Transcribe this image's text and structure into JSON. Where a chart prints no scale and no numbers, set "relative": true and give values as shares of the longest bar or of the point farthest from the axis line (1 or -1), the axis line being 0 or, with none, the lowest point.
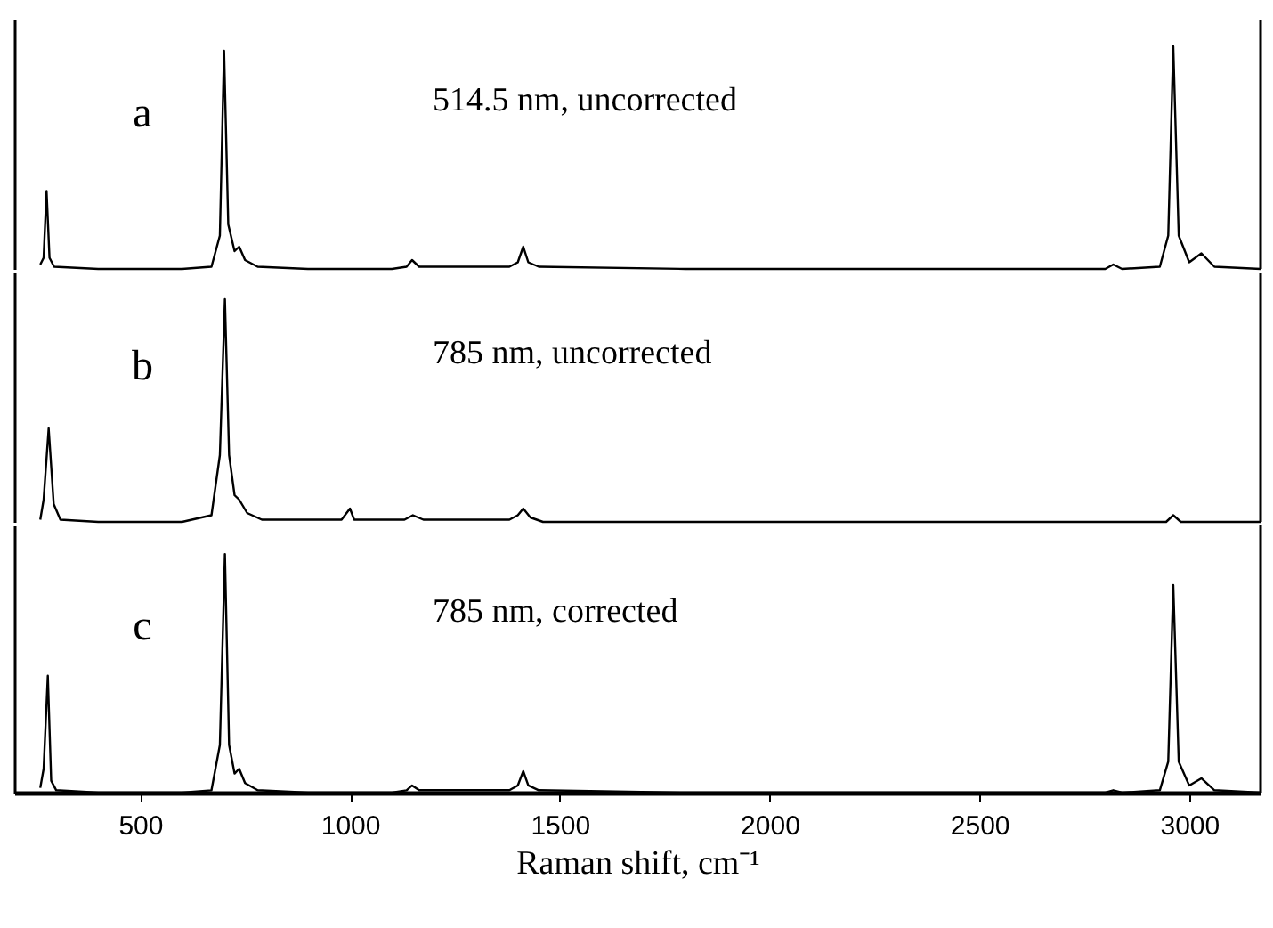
{
  "chart_data": [
    {
      "type": "line",
      "relative": true,
      "annotations": [
        "a"
      ],
      "xlim": [
        200,
        3170
      ],
      "xticks": [
        500,
        1000,
        1500,
        2000,
        2500,
        3000
      ],
      "tick_labels": false,
      "series": [
        {
          "name": "514.5 nm, uncorrected",
          "color": "#000000",
          "x": [
            262,
            270,
            277,
            284,
            295,
            400,
            600,
            670,
            690,
            700,
            710,
            725,
            736,
            750,
            780,
            900,
            1100,
            1135,
            1148,
            1165,
            1380,
            1400,
            1413,
            1425,
            1450,
            1800,
            2500,
            2800,
            2819,
            2840,
            2930,
            2950,
            2962,
            2975,
            3000,
            3029,
            3060,
            3170
          ],
          "values": [
            0.02,
            0.05,
            0.35,
            0.05,
            0.01,
            0,
            0,
            0.01,
            0.15,
            0.98,
            0.2,
            0.08,
            0.1,
            0.04,
            0.01,
            0,
            0,
            0.01,
            0.04,
            0.01,
            0.01,
            0.03,
            0.1,
            0.03,
            0.01,
            0,
            0,
            0,
            0.02,
            0,
            0.01,
            0.15,
            1.0,
            0.15,
            0.03,
            0.07,
            0.01,
            0
          ]
        }
      ]
    },
    {
      "type": "line",
      "relative": true,
      "annotations": [
        "b"
      ],
      "xlim": [
        200,
        3170
      ],
      "xticks": [
        500,
        1000,
        1500,
        2000,
        2500,
        3000
      ],
      "tick_labels": false,
      "series": [
        {
          "name": "785 nm, uncorrected",
          "color": "#000000",
          "x": [
            262,
            270,
            282,
            294,
            310,
            400,
            600,
            670,
            690,
            702,
            712,
            725,
            736,
            755,
            790,
            980,
            1000,
            1010,
            1130,
            1150,
            1175,
            1380,
            1400,
            1413,
            1430,
            1460,
            2000,
            2500,
            2945,
            2962,
            2980,
            3170
          ],
          "values": [
            0.01,
            0.1,
            0.42,
            0.08,
            0.01,
            0,
            0,
            0.03,
            0.3,
            1.0,
            0.3,
            0.12,
            0.1,
            0.04,
            0.01,
            0.01,
            0.06,
            0.01,
            0.01,
            0.03,
            0.01,
            0.01,
            0.03,
            0.06,
            0.02,
            0,
            0,
            0,
            0,
            0.03,
            0,
            0
          ]
        }
      ]
    },
    {
      "type": "line",
      "relative": true,
      "annotations": [
        "c"
      ],
      "xlabel": "Raman shift, cm⁻¹",
      "xlim": [
        200,
        3170
      ],
      "xticks": [
        500,
        1000,
        1500,
        2000,
        2500,
        3000
      ],
      "tick_labels": "x",
      "series": [
        {
          "name": "785 nm, corrected",
          "color": "#000000",
          "x": [
            262,
            270,
            280,
            288,
            300,
            400,
            600,
            670,
            690,
            702,
            712,
            725,
            736,
            750,
            780,
            900,
            1100,
            1135,
            1148,
            1165,
            1380,
            1400,
            1413,
            1425,
            1450,
            1800,
            2500,
            2800,
            2819,
            2840,
            2930,
            2950,
            2962,
            2975,
            3000,
            3029,
            3060,
            3170
          ],
          "values": [
            0.02,
            0.1,
            0.49,
            0.05,
            0.01,
            0,
            0,
            0.01,
            0.2,
            1.0,
            0.2,
            0.08,
            0.1,
            0.04,
            0.01,
            0,
            0,
            0.01,
            0.03,
            0.01,
            0.01,
            0.03,
            0.09,
            0.03,
            0.01,
            0,
            0,
            0,
            0.01,
            0,
            0.01,
            0.13,
            0.87,
            0.13,
            0.03,
            0.06,
            0.01,
            0
          ]
        }
      ]
    }
  ]
}
